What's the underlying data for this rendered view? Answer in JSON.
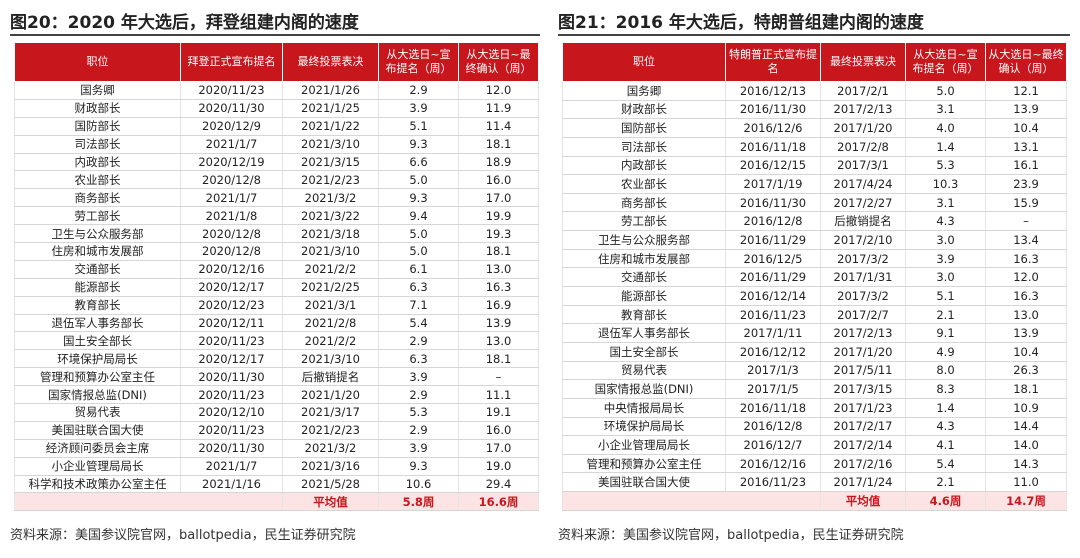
{
  "panels": [
    {
      "title": "图20：2020 年大选后，拜登组建内阁的速度",
      "header": [
        "职位",
        "拜登正式宣布提名",
        "最终投票表决",
        "从大选日~宣布提名（周）",
        "从大选日~最终确认（周）"
      ],
      "rows": [
        [
          "国务卿",
          "2020/11/23",
          "2021/1/26",
          "2.9",
          "12.0"
        ],
        [
          "财政部长",
          "2020/11/30",
          "2021/1/25",
          "3.9",
          "11.9"
        ],
        [
          "国防部长",
          "2020/12/9",
          "2021/1/22",
          "5.1",
          "11.4"
        ],
        [
          "司法部长",
          "2021/1/7",
          "2021/3/10",
          "9.3",
          "18.1"
        ],
        [
          "内政部长",
          "2020/12/19",
          "2021/3/15",
          "6.6",
          "18.9"
        ],
        [
          "农业部长",
          "2020/12/8",
          "2021/2/23",
          "5.0",
          "16.0"
        ],
        [
          "商务部长",
          "2021/1/7",
          "2021/3/2",
          "9.3",
          "17.0"
        ],
        [
          "劳工部长",
          "2021/1/8",
          "2021/3/22",
          "9.4",
          "19.9"
        ],
        [
          "卫生与公众服务部",
          "2020/12/8",
          "2021/3/18",
          "5.0",
          "19.3"
        ],
        [
          "住房和城市发展部",
          "2020/12/8",
          "2021/3/10",
          "5.0",
          "18.1"
        ],
        [
          "交通部长",
          "2020/12/16",
          "2021/2/2",
          "6.1",
          "13.0"
        ],
        [
          "能源部长",
          "2020/12/17",
          "2021/2/25",
          "6.3",
          "16.3"
        ],
        [
          "教育部长",
          "2020/12/23",
          "2021/3/1",
          "7.1",
          "16.9"
        ],
        [
          "退伍军人事务部长",
          "2020/12/11",
          "2021/2/8",
          "5.4",
          "13.9"
        ],
        [
          "国土安全部长",
          "2020/11/23",
          "2021/2/2",
          "2.9",
          "13.0"
        ],
        [
          "环境保护局局长",
          "2020/12/17",
          "2021/3/10",
          "6.3",
          "18.1"
        ],
        [
          "管理和预算办公室主任",
          "2020/11/30",
          "后撤销提名",
          "3.9",
          "–"
        ],
        [
          "国家情报总监(DNI)",
          "2020/11/23",
          "2021/1/20",
          "2.9",
          "11.1"
        ],
        [
          "贸易代表",
          "2020/12/10",
          "2021/3/17",
          "5.3",
          "19.1"
        ],
        [
          "美国驻联合国大使",
          "2020/11/23",
          "2021/2/23",
          "2.9",
          "16.0"
        ],
        [
          "经济顾问委员会主席",
          "2020/11/30",
          "2021/3/2",
          "3.9",
          "17.0"
        ],
        [
          "小企业管理局局长",
          "2021/1/7",
          "2021/3/16",
          "9.3",
          "19.0"
        ],
        [
          "科学和技术政策办公室主任",
          "2021/1/16",
          "2021/5/28",
          "10.6",
          "29.4"
        ]
      ],
      "average": {
        "label": "平均值",
        "values": [
          "5.8周",
          "16.6周"
        ]
      },
      "source": "资料来源：美国参议院官网，ballotpedia，民生证券研究院"
    },
    {
      "title": "图21：2016 年大选后，特朗普组建内阁的速度",
      "header": [
        "职位",
        "特朗普正式宣布提名",
        "最终投票表决",
        "从大选日~宣布提名（周）",
        "从大选日~最终确认（周）"
      ],
      "rows": [
        [
          "国务卿",
          "2016/12/13",
          "2017/2/1",
          "5.0",
          "12.1"
        ],
        [
          "财政部长",
          "2016/11/30",
          "2017/2/13",
          "3.1",
          "13.9"
        ],
        [
          "国防部长",
          "2016/12/6",
          "2017/1/20",
          "4.0",
          "10.4"
        ],
        [
          "司法部长",
          "2016/11/18",
          "2017/2/8",
          "1.4",
          "13.1"
        ],
        [
          "内政部长",
          "2016/12/15",
          "2017/3/1",
          "5.3",
          "16.1"
        ],
        [
          "农业部长",
          "2017/1/19",
          "2017/4/24",
          "10.3",
          "23.9"
        ],
        [
          "商务部长",
          "2016/11/30",
          "2017/2/27",
          "3.1",
          "15.9"
        ],
        [
          "劳工部长",
          "2016/12/8",
          "后撤销提名",
          "4.3",
          "–"
        ],
        [
          "卫生与公众服务部",
          "2016/11/29",
          "2017/2/10",
          "3.0",
          "13.4"
        ],
        [
          "住房和城市发展部",
          "2016/12/5",
          "2017/3/2",
          "3.9",
          "16.3"
        ],
        [
          "交通部长",
          "2016/11/29",
          "2017/1/31",
          "3.0",
          "12.0"
        ],
        [
          "能源部长",
          "2016/12/14",
          "2017/3/2",
          "5.1",
          "16.3"
        ],
        [
          "教育部长",
          "2016/11/23",
          "2017/2/7",
          "2.1",
          "13.0"
        ],
        [
          "退伍军人事务部长",
          "2017/1/11",
          "2017/2/13",
          "9.1",
          "13.9"
        ],
        [
          "国土安全部长",
          "2016/12/12",
          "2017/1/20",
          "4.9",
          "10.4"
        ],
        [
          "贸易代表",
          "2017/1/3",
          "2017/5/11",
          "8.0",
          "26.3"
        ],
        [
          "国家情报总监(DNI)",
          "2017/1/5",
          "2017/3/15",
          "8.3",
          "18.1"
        ],
        [
          "中央情报局局长",
          "2016/11/18",
          "2017/1/23",
          "1.4",
          "10.9"
        ],
        [
          "环境保护局局长",
          "2016/12/8",
          "2017/2/17",
          "4.3",
          "14.4"
        ],
        [
          "小企业管理局局长",
          "2016/12/7",
          "2017/2/14",
          "4.1",
          "14.0"
        ],
        [
          "管理和预算办公室主任",
          "2016/12/16",
          "2017/2/16",
          "5.4",
          "14.3"
        ],
        [
          "美国驻联合国大使",
          "2016/11/23",
          "2017/1/24",
          "2.1",
          "11.0"
        ]
      ],
      "average": {
        "label": "平均值",
        "values": [
          "4.6周",
          "14.7周"
        ]
      },
      "source": "资料来源：美国参议院官网，ballotpedia，民生证券研究院"
    }
  ]
}
